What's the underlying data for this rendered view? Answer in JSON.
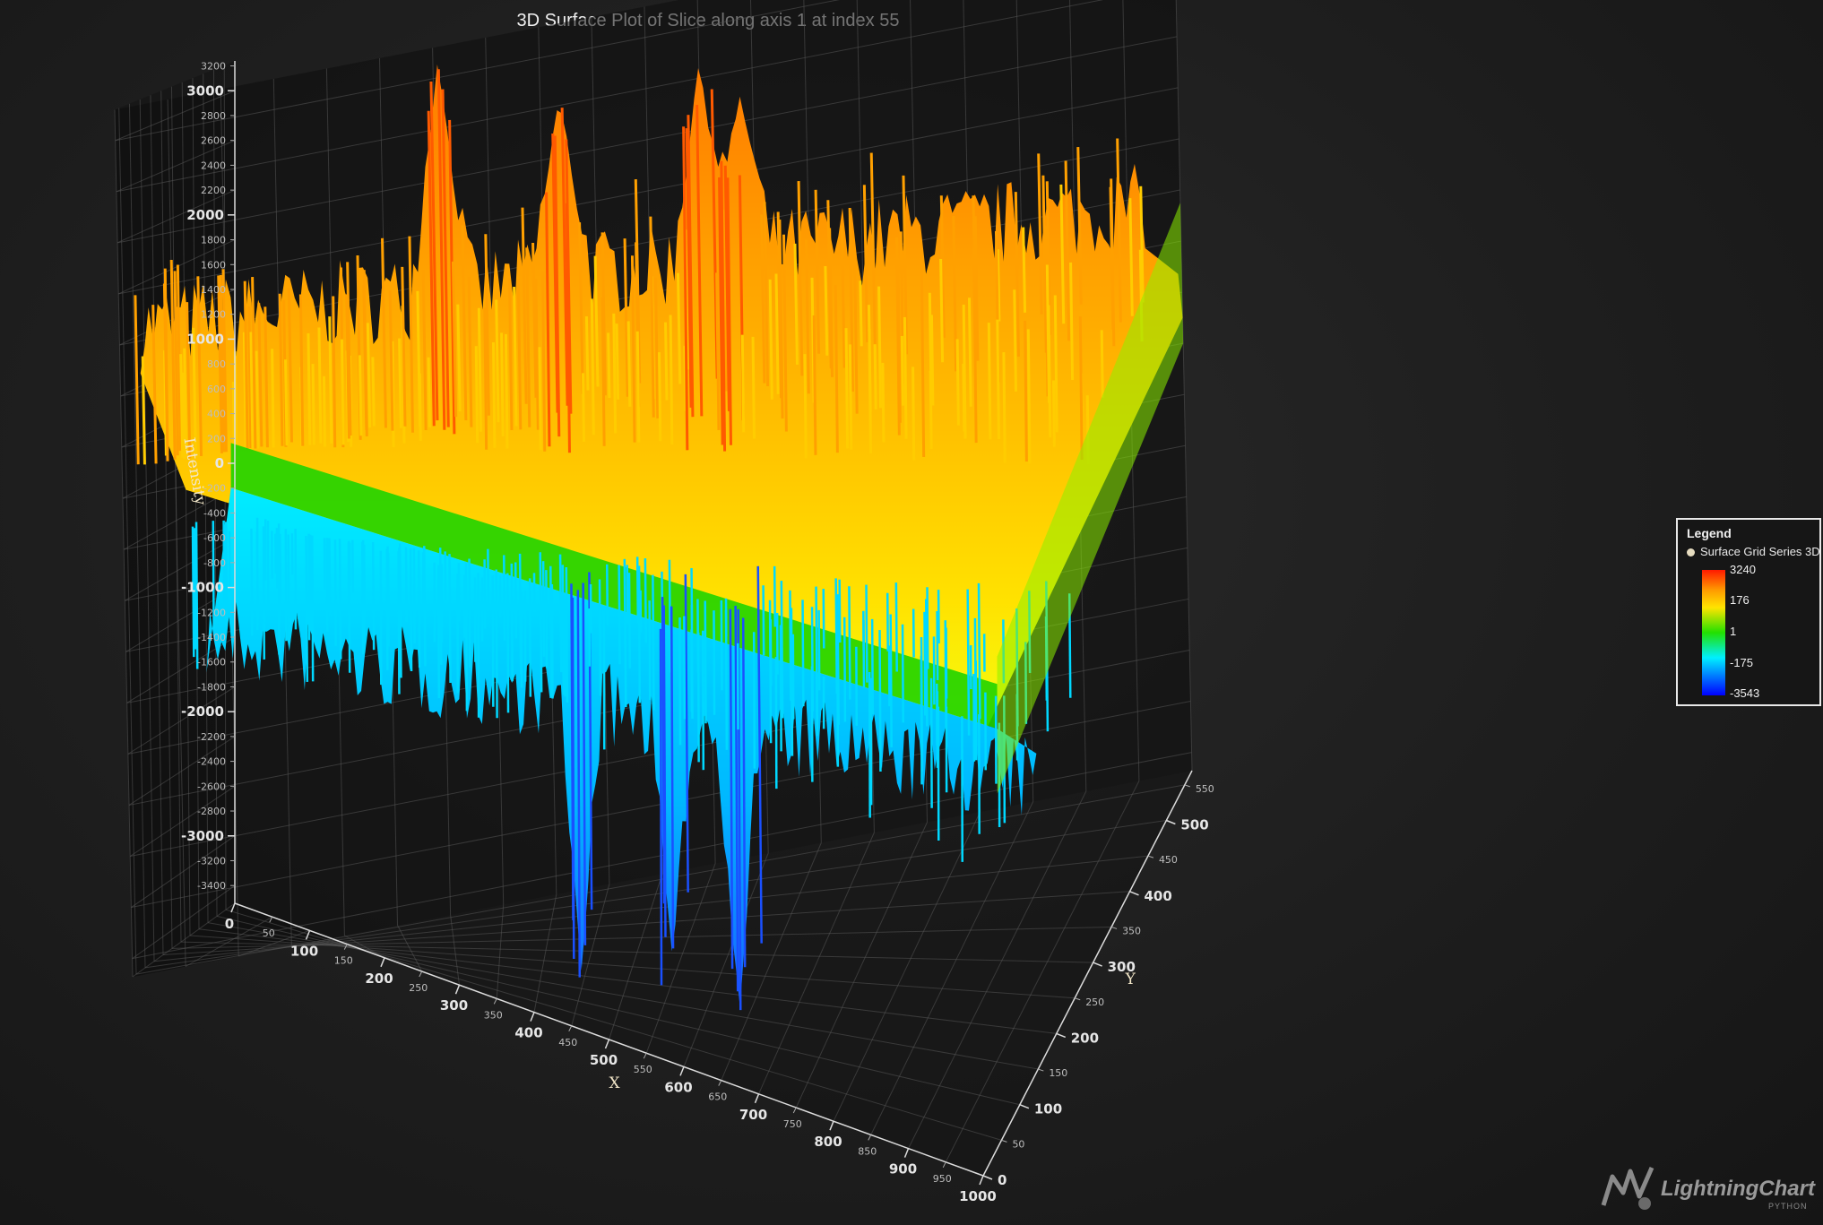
{
  "chart_data": {
    "type": "surface3d",
    "title": "3D Surface Plot of Slice along axis 1 at index 55",
    "xlabel": "X",
    "ylabel": "Intensity",
    "zlabel": "Y",
    "xlim": [
      0,
      1000
    ],
    "zlim": [
      0,
      570
    ],
    "ylim": [
      -3543,
      3240
    ],
    "x_ticks_major": [
      "0",
      "100",
      "200",
      "300",
      "400",
      "500",
      "600",
      "700",
      "800",
      "900",
      "1000"
    ],
    "x_ticks_minor": [
      "50",
      "150",
      "250",
      "350",
      "450",
      "550",
      "650",
      "750",
      "850",
      "950"
    ],
    "z_ticks_major": [
      "0",
      "100",
      "200",
      "300",
      "400",
      "500"
    ],
    "z_ticks_minor": [
      "50",
      "150",
      "250",
      "350",
      "450",
      "550"
    ],
    "y_ticks_major": [
      "3000",
      "2000",
      "1000",
      "0",
      "-1000",
      "-2000",
      "-3000"
    ],
    "y_ticks_minor": [
      "3200",
      "2800",
      "2600",
      "2400",
      "2200",
      "1800",
      "1600",
      "1400",
      "1200",
      "800",
      "600",
      "400",
      "200",
      "-200",
      "-400",
      "-600",
      "-800",
      "-1200",
      "-1400",
      "-1600",
      "-1800",
      "-2200",
      "-2400",
      "-2600",
      "-2800",
      "-3200",
      "-3400"
    ],
    "series": [
      {
        "name": "Surface Grid Series 3D",
        "baseline": 0,
        "peaks": [
          {
            "x": 300,
            "z": 470,
            "value": 3240
          },
          {
            "x": 420,
            "z": 490,
            "value": 2850
          },
          {
            "x": 560,
            "z": 500,
            "value": 3000
          },
          {
            "x": 600,
            "z": 470,
            "value": 2700
          }
        ],
        "troughs": [
          {
            "x": 450,
            "z": 160,
            "value": -3400
          },
          {
            "x": 640,
            "z": 200,
            "value": -3543
          },
          {
            "x": 560,
            "z": 140,
            "value": -3200
          }
        ]
      }
    ],
    "legend_position": "right",
    "grid": true
  },
  "legend": {
    "title": "Legend",
    "series_name": "Surface Grid Series 3D",
    "values": [
      "3240",
      "176",
      "1",
      "-175",
      "-3543"
    ]
  },
  "brand": {
    "name": "LightningChart",
    "sub": "PYTHON",
    "mark": "®"
  },
  "colors": {
    "background": "#1e1e1e",
    "high": "#ff1a00",
    "mid_high": "#ffd400",
    "zero": "#22e000",
    "mid_low": "#00e0ff",
    "low": "#0000ff"
  }
}
